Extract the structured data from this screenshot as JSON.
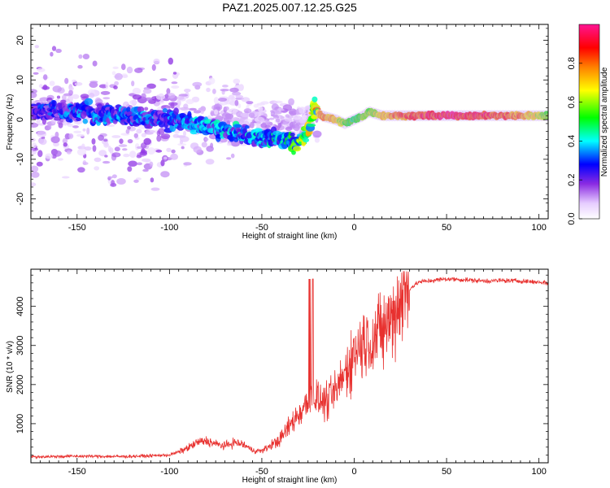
{
  "title": "PAZ1.2025.007.12.25.G25",
  "chart_data": [
    {
      "type": "heatmap",
      "xlabel": "Height of straight line (km)",
      "ylabel": "Frequency (Hz)",
      "xlim": [
        -175,
        105
      ],
      "ylim": [
        -25,
        24
      ],
      "xticks": [
        -150,
        -100,
        -50,
        0,
        50,
        100
      ],
      "yticks": [
        -20,
        -10,
        0,
        10,
        20
      ],
      "colorbar": {
        "label": "Normalized spectral amplitude",
        "range": [
          0,
          1
        ],
        "ticks": [
          "0.0",
          "0.2",
          "0.4",
          "0.6",
          "0.8"
        ],
        "colors": [
          "#ffffff",
          "#a020f0",
          "#0000ff",
          "#00ffff",
          "#00ff00",
          "#ffff00",
          "#ff8000",
          "#ff0000",
          "#ff1493"
        ]
      },
      "ridge": {
        "x": [
          -175,
          -150,
          -125,
          -100,
          -75,
          -60,
          -50,
          -40,
          -30,
          -25,
          -22,
          -18,
          -10,
          -5,
          0,
          5,
          8,
          15,
          30,
          50,
          70,
          90,
          105
        ],
        "y": [
          2,
          2,
          1,
          0,
          -2,
          -4,
          -5,
          -5,
          -6,
          -3,
          3,
          1,
          0,
          -1,
          0,
          1,
          2,
          1,
          1,
          1,
          1,
          1,
          1
        ],
        "amplitude": [
          0.25,
          0.3,
          0.3,
          0.3,
          0.35,
          0.35,
          0.35,
          0.4,
          0.5,
          0.6,
          0.6,
          0.8,
          0.7,
          0.6,
          0.5,
          0.6,
          0.6,
          0.75,
          0.85,
          0.95,
          0.9,
          0.8,
          0.6
        ]
      }
    },
    {
      "type": "line",
      "xlabel": "Height of straight line (km)",
      "ylabel": "SNR (10 * v/v)",
      "xlim": [
        -175,
        105
      ],
      "ylim": [
        0,
        4950
      ],
      "xticks": [
        -150,
        -100,
        -50,
        0,
        50,
        100
      ],
      "yticks": [
        1000,
        2000,
        3000,
        4000
      ],
      "color": "#e8312f",
      "series": [
        {
          "x": [
            -175,
            -150,
            -125,
            -110,
            -100,
            -95,
            -90,
            -85,
            -80,
            -75,
            -70,
            -65,
            -60,
            -55,
            -50,
            -45,
            -40,
            -35,
            -30,
            -25,
            -22,
            -20,
            -15,
            -10,
            -5,
            0,
            5,
            10,
            15,
            20,
            25,
            30,
            35,
            40,
            50,
            60,
            70,
            80,
            90,
            100,
            105
          ],
          "y": [
            150,
            170,
            160,
            180,
            200,
            280,
            380,
            520,
            560,
            480,
            430,
            520,
            470,
            320,
            300,
            450,
            600,
            950,
            1250,
            1550,
            1700,
            1600,
            1550,
            1800,
            2300,
            2800,
            3100,
            3150,
            3350,
            3700,
            4150,
            4450,
            4620,
            4650,
            4700,
            4680,
            4650,
            4660,
            4650,
            4620,
            4600
          ]
        }
      ]
    }
  ]
}
